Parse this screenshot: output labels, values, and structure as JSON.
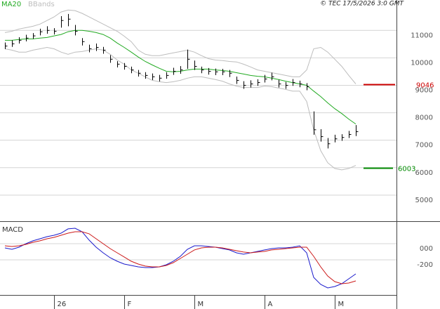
{
  "chart_data": [
    {
      "type": "ohlc",
      "credit": "© TEC 17/5/2026 3:0 GMT",
      "categories": [
        null,
        null,
        null,
        null,
        null,
        null,
        null,
        "26",
        null,
        null,
        null,
        null,
        null,
        null,
        null,
        null,
        null,
        "F",
        null,
        null,
        null,
        null,
        null,
        null,
        null,
        null,
        null,
        "M",
        null,
        null,
        null,
        null,
        null,
        null,
        null,
        null,
        null,
        "A",
        null,
        null,
        null,
        null,
        null,
        null,
        null,
        null,
        null,
        "M",
        null,
        null,
        null
      ],
      "high": [
        10560,
        10640,
        10750,
        10840,
        10900,
        11060,
        11150,
        11080,
        11520,
        11600,
        11200,
        10720,
        10480,
        10520,
        10400,
        10100,
        9880,
        9810,
        9680,
        9560,
        9480,
        9430,
        9380,
        9480,
        9640,
        9700,
        10300,
        9900,
        9680,
        9630,
        9610,
        9600,
        9560,
        9320,
        9150,
        9180,
        9220,
        9380,
        9460,
        9200,
        9120,
        9230,
        9170,
        9080,
        8050,
        7400,
        7080,
        7200,
        7220,
        7340,
        7550
      ],
      "low": [
        10320,
        10400,
        10520,
        10600,
        10690,
        10820,
        10880,
        10850,
        11100,
        11150,
        10820,
        10450,
        10200,
        10250,
        10150,
        9820,
        9650,
        9570,
        9440,
        9320,
        9240,
        9190,
        9140,
        9240,
        9380,
        9420,
        9600,
        9560,
        9440,
        9390,
        9370,
        9370,
        9300,
        9050,
        8870,
        8920,
        8980,
        9100,
        9180,
        8920,
        8870,
        8980,
        8930,
        8820,
        7200,
        6950,
        6700,
        6920,
        6980,
        7080,
        7150
      ],
      "close": [
        10430,
        10510,
        10640,
        10720,
        10800,
        10950,
        11000,
        10970,
        11360,
        11410,
        10970,
        10590,
        10330,
        10380,
        10280,
        9950,
        9770,
        9690,
        9560,
        9440,
        9360,
        9310,
        9260,
        9360,
        9510,
        9560,
        9950,
        9690,
        9560,
        9510,
        9490,
        9490,
        9440,
        9180,
        9000,
        9050,
        9100,
        9230,
        9310,
        9050,
        9000,
        9100,
        9050,
        8950,
        7380,
        7130,
        6870,
        7050,
        7100,
        7210,
        7310
      ],
      "color": "#000000",
      "series": [
        {
          "name": "MA20",
          "color": "#22aa22",
          "values": [
            10640,
            10640,
            10670,
            10690,
            10690,
            10720,
            10740,
            10800,
            10850,
            10950,
            11000,
            11000,
            10970,
            10920,
            10850,
            10720,
            10540,
            10380,
            10210,
            10030,
            9870,
            9740,
            9620,
            9510,
            9490,
            9510,
            9560,
            9590,
            9590,
            9590,
            9560,
            9540,
            9510,
            9460,
            9410,
            9360,
            9330,
            9310,
            9260,
            9210,
            9150,
            9100,
            9050,
            9000,
            8790,
            8590,
            8360,
            8150,
            7970,
            7770,
            7590
          ]
        },
        {
          "name": "BBands",
          "color": "#bdbdbd",
          "upper": [
            10920,
            10970,
            11050,
            11100,
            11150,
            11230,
            11360,
            11490,
            11670,
            11740,
            11720,
            11620,
            11490,
            11360,
            11230,
            11100,
            10970,
            10790,
            10590,
            10280,
            10130,
            10080,
            10080,
            10130,
            10180,
            10230,
            10280,
            10210,
            10080,
            9970,
            9920,
            9900,
            9870,
            9850,
            9770,
            9670,
            9560,
            9510,
            9460,
            9410,
            9360,
            9310,
            9310,
            9560,
            10330,
            10380,
            10210,
            9950,
            9690,
            9360,
            9050
          ],
          "lower": [
            10330,
            10280,
            10210,
            10210,
            10280,
            10330,
            10380,
            10330,
            10210,
            10130,
            10210,
            10230,
            10280,
            10330,
            10280,
            10130,
            9920,
            9770,
            9560,
            9440,
            9310,
            9180,
            9130,
            9100,
            9130,
            9180,
            9260,
            9310,
            9310,
            9260,
            9210,
            9150,
            9050,
            8970,
            8920,
            8920,
            8920,
            8970,
            8950,
            8900,
            8850,
            8790,
            8790,
            8410,
            7380,
            6620,
            6180,
            5970,
            5920,
            5970,
            6080
          ]
        }
      ],
      "levels": [
        {
          "value": 9046,
          "color": "#cc0000"
        },
        {
          "value": 6003,
          "color": "#008800"
        }
      ],
      "ylim": [
        4050,
        11800
      ],
      "yticks": [
        5000,
        6000,
        7000,
        8000,
        9000,
        10000,
        11000
      ],
      "grid": true
    },
    {
      "type": "line",
      "title": "MACD",
      "series": [
        {
          "color": "#1a1acc",
          "values": [
            -52,
            -70,
            -44,
            0,
            35,
            61,
            87,
            104,
            130,
            183,
            191,
            148,
            44,
            -44,
            -113,
            -174,
            -218,
            -252,
            -270,
            -287,
            -296,
            -296,
            -287,
            -261,
            -218,
            -157,
            -70,
            -26,
            -26,
            -35,
            -44,
            -61,
            -78,
            -113,
            -131,
            -113,
            -96,
            -78,
            -61,
            -52,
            -52,
            -44,
            -26,
            -113,
            -418,
            -505,
            -548,
            -531,
            -496,
            -435,
            -374
          ]
        },
        {
          "color": "#cc1a1a",
          "values": [
            -26,
            -35,
            -26,
            -9,
            17,
            35,
            61,
            78,
            104,
            130,
            148,
            148,
            122,
            61,
            0,
            -61,
            -113,
            -165,
            -218,
            -252,
            -278,
            -287,
            -287,
            -270,
            -235,
            -183,
            -131,
            -78,
            -52,
            -44,
            -44,
            -52,
            -70,
            -87,
            -104,
            -113,
            -104,
            -96,
            -78,
            -70,
            -61,
            -52,
            -44,
            -44,
            -157,
            -287,
            -400,
            -470,
            -496,
            -487,
            -461
          ]
        }
      ],
      "ylim": [
        -635,
        278
      ],
      "yticks": [
        {
          "value": 0,
          "label": "000"
        },
        -200
      ],
      "grid": true
    }
  ]
}
